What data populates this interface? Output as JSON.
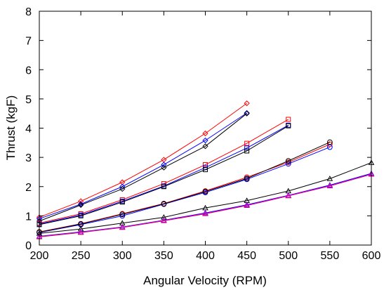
{
  "chart_data": {
    "type": "line",
    "xlabel": "Angular Velocity (RPM)",
    "ylabel": "Thrust (kgF)",
    "xlim": [
      200,
      600
    ],
    "ylim": [
      0,
      8
    ],
    "xticks": [
      200,
      250,
      300,
      350,
      400,
      450,
      500,
      550,
      600
    ],
    "yticks": [
      0,
      1,
      2,
      3,
      4,
      5,
      6,
      7,
      8
    ],
    "grid": false,
    "legend": "none",
    "series": [
      {
        "color": "#ff0000",
        "marker": "diamond",
        "x": [
          200,
          250,
          300,
          350,
          400,
          450
        ],
        "y": [
          0.95,
          1.5,
          2.15,
          2.92,
          3.82,
          4.85
        ]
      },
      {
        "color": "#0000ff",
        "marker": "diamond",
        "x": [
          200,
          250,
          300,
          350,
          400,
          450
        ],
        "y": [
          0.9,
          1.4,
          2.0,
          2.75,
          3.58,
          4.52
        ]
      },
      {
        "color": "#000000",
        "marker": "diamond",
        "x": [
          200,
          250,
          300,
          350,
          400,
          450
        ],
        "y": [
          0.82,
          1.37,
          1.92,
          2.65,
          3.38,
          4.5
        ]
      },
      {
        "color": "#ff0000",
        "marker": "square",
        "x": [
          200,
          250,
          300,
          350,
          400,
          450,
          500
        ],
        "y": [
          0.75,
          1.07,
          1.55,
          2.1,
          2.75,
          3.48,
          4.3
        ]
      },
      {
        "color": "#0000ff",
        "marker": "square",
        "x": [
          200,
          250,
          300,
          350,
          400,
          450,
          500
        ],
        "y": [
          0.72,
          1.03,
          1.5,
          2.02,
          2.65,
          3.32,
          4.1
        ]
      },
      {
        "color": "#000000",
        "marker": "square",
        "x": [
          200,
          250,
          300,
          350,
          400,
          450,
          500
        ],
        "y": [
          0.7,
          1.0,
          1.47,
          2.0,
          2.58,
          3.22,
          4.08
        ]
      },
      {
        "color": "#ff0000",
        "marker": "circle",
        "x": [
          200,
          250,
          300,
          350,
          400,
          450,
          500,
          550
        ],
        "y": [
          0.45,
          0.73,
          1.07,
          1.42,
          1.85,
          2.32,
          2.83,
          3.45
        ]
      },
      {
        "color": "#0000ff",
        "marker": "circle",
        "x": [
          200,
          250,
          300,
          350,
          400,
          450,
          500,
          550
        ],
        "y": [
          0.43,
          0.7,
          1.0,
          1.4,
          1.8,
          2.25,
          2.78,
          3.35
        ]
      },
      {
        "color": "#000000",
        "marker": "circle",
        "x": [
          200,
          250,
          300,
          350,
          400,
          450,
          500,
          550
        ],
        "y": [
          0.44,
          0.72,
          1.05,
          1.41,
          1.83,
          2.28,
          2.88,
          3.52
        ]
      },
      {
        "color": "#000000",
        "marker": "triangle",
        "x": [
          200,
          250,
          300,
          350,
          400,
          450,
          500,
          550,
          600
        ],
        "y": [
          0.4,
          0.55,
          0.75,
          0.95,
          1.27,
          1.52,
          1.85,
          2.27,
          2.82
        ]
      },
      {
        "color": "#0000ff",
        "marker": "triangle",
        "x": [
          200,
          250,
          300,
          350,
          400,
          450,
          500,
          550,
          600
        ],
        "y": [
          0.3,
          0.45,
          0.62,
          0.85,
          1.1,
          1.38,
          1.7,
          2.05,
          2.45
        ]
      },
      {
        "color": "#ff0000",
        "marker": "triangle",
        "x": [
          200,
          250,
          300,
          350,
          400,
          450,
          500,
          550,
          600
        ],
        "y": [
          0.28,
          0.43,
          0.6,
          0.83,
          1.07,
          1.35,
          1.68,
          2.02,
          2.42
        ]
      },
      {
        "color": "#cc00cc",
        "marker": "triangle",
        "x": [
          200,
          250,
          300,
          350,
          400,
          450,
          500,
          550,
          600
        ],
        "y": [
          0.29,
          0.44,
          0.61,
          0.84,
          1.08,
          1.36,
          1.69,
          2.03,
          2.43
        ]
      }
    ]
  }
}
